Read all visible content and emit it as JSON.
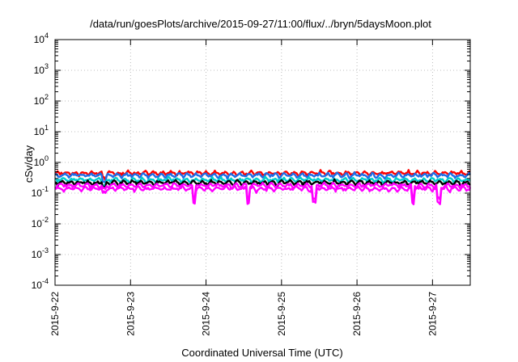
{
  "chart_data": {
    "type": "line",
    "title": "/data/run/goesPlots/archive/2015-09-27/11:00/flux/../bryn/5daysMoon.plot",
    "xlabel": "Coordinated Universal Time (UTC)",
    "ylabel": "cSv/day",
    "yscale": "log",
    "ylim": [
      0.0001,
      10000
    ],
    "y_ticks": [
      {
        "base": "10",
        "exp": "-4"
      },
      {
        "base": "10",
        "exp": "-3"
      },
      {
        "base": "10",
        "exp": "-2"
      },
      {
        "base": "10",
        "exp": "-1"
      },
      {
        "base": "10",
        "exp": "0"
      },
      {
        "base": "10",
        "exp": "1"
      },
      {
        "base": "10",
        "exp": "2"
      },
      {
        "base": "10",
        "exp": "3"
      },
      {
        "base": "10",
        "exp": "4"
      }
    ],
    "xlim": [
      "2015-09-22",
      "2015-09-27 12:00"
    ],
    "x_ticks": [
      "2015-9-22",
      "2015-9-23",
      "2015-9-24",
      "2015-9-25",
      "2015-9-26",
      "2015-9-27"
    ],
    "grid": true,
    "series": [
      {
        "color": "#ff0000",
        "mean": 0.45
      },
      {
        "color": "#1e6ee6",
        "mean": 0.38
      },
      {
        "color": "#00cccc",
        "mean": 0.27
      },
      {
        "color": "#000000",
        "mean": 0.22
      },
      {
        "color": "#ff00ff",
        "mean": 0.18
      },
      {
        "color": "#ff00ff",
        "mean": 0.14
      }
    ]
  }
}
